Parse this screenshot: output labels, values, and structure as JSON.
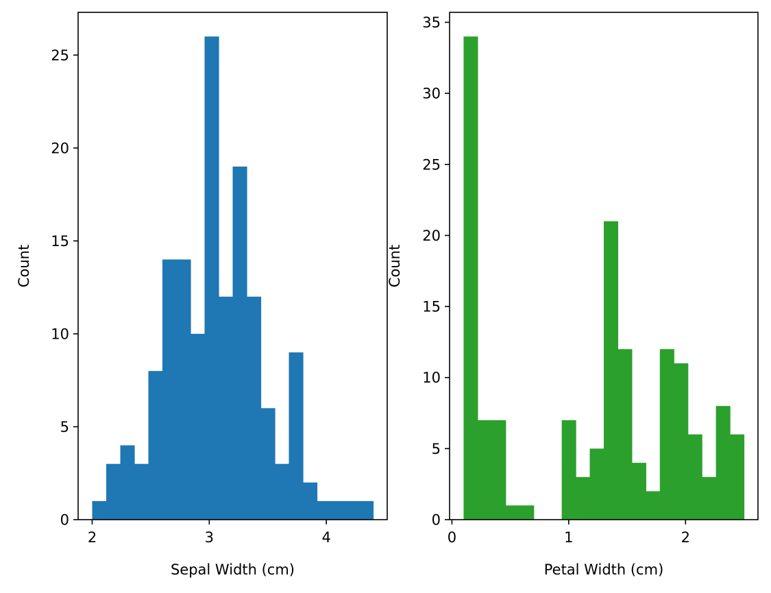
{
  "chart_data": [
    {
      "type": "bar",
      "subtype": "histogram",
      "xlabel": "Sepal Width (cm)",
      "ylabel": "Count",
      "color": "#1f77b4",
      "xlim": [
        1.88,
        4.52
      ],
      "ylim": [
        0,
        27.3
      ],
      "xticks": [
        2,
        3,
        4
      ],
      "yticks": [
        0,
        5,
        10,
        15,
        20,
        25
      ],
      "bin_start": 2.0,
      "bin_width": 0.12,
      "values": [
        1,
        3,
        4,
        3,
        8,
        14,
        14,
        10,
        26,
        12,
        19,
        12,
        6,
        3,
        9,
        2,
        1,
        1,
        1,
        1
      ],
      "grid": false
    },
    {
      "type": "bar",
      "subtype": "histogram",
      "xlabel": "Petal Width (cm)",
      "ylabel": "Count",
      "color": "#2ca02c",
      "xlim": [
        -0.02,
        2.62
      ],
      "ylim": [
        0,
        35.7
      ],
      "xticks": [
        0,
        1,
        2
      ],
      "yticks": [
        0,
        5,
        10,
        15,
        20,
        25,
        30,
        35
      ],
      "bin_start": 0.1,
      "bin_width": 0.12,
      "values": [
        34,
        7,
        7,
        1,
        1,
        0,
        0,
        7,
        3,
        5,
        21,
        12,
        4,
        2,
        12,
        11,
        6,
        3,
        8,
        6
      ],
      "grid": false
    }
  ]
}
